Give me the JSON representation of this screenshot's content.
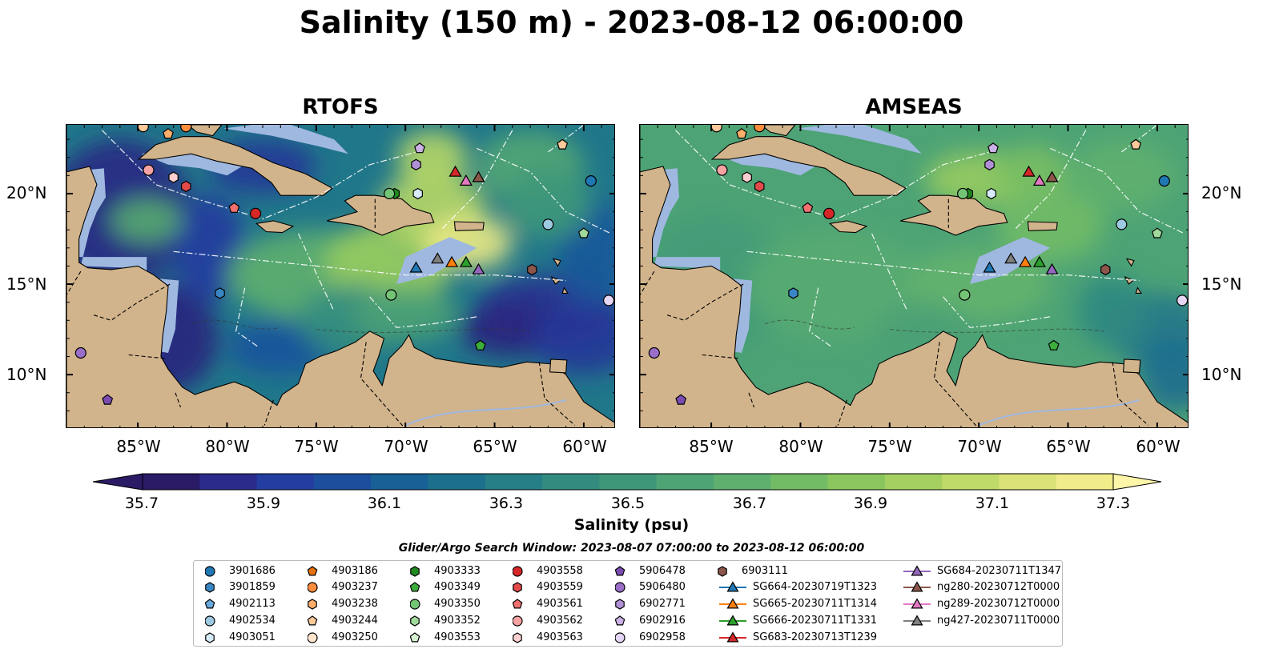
{
  "title": "Salinity (150 m) - 2023-08-12 06:00:00",
  "panels": [
    {
      "title": "RTOFS",
      "scheme": "rtofs"
    },
    {
      "title": "AMSEAS",
      "scheme": "amseas"
    }
  ],
  "x_ticks": [
    "85°W",
    "80°W",
    "75°W",
    "70°W",
    "65°W",
    "60°W"
  ],
  "y_ticks": [
    "20°N",
    "15°N",
    "10°N"
  ],
  "colorbar": {
    "label": "Salinity (psu)",
    "ticks": [
      "35.7",
      "35.9",
      "36.1",
      "36.3",
      "36.5",
      "36.7",
      "36.9",
      "37.1",
      "37.3"
    ],
    "colors": [
      "#2b1a66",
      "#2a2b8a",
      "#233ea0",
      "#1b4f9e",
      "#186196",
      "#1d708d",
      "#267f86",
      "#338b7f",
      "#3f977a",
      "#4ea475",
      "#5fb06f",
      "#73bc66",
      "#8ac65d",
      "#a4d061",
      "#c0da6a",
      "#dae377",
      "#f1ec8a"
    ]
  },
  "search_window": "Glider/Argo Search Window: 2023-08-07 07:00:00 to 2023-08-12 06:00:00",
  "legend": [
    [
      "3901686",
      "circle",
      "#1f77b4"
    ],
    [
      "3901859",
      "hexagon",
      "#3a86c4"
    ],
    [
      "4902113",
      "pentagon",
      "#6aa9db"
    ],
    [
      "4902534",
      "circle",
      "#9ecae1"
    ],
    [
      "4903051",
      "hexagon",
      "#d6ebf7"
    ],
    [
      "4903186",
      "pentagon",
      "#e6700b"
    ],
    [
      "4903237",
      "circle",
      "#fd8d3c"
    ],
    [
      "4903238",
      "hexagon",
      "#fdae6b"
    ],
    [
      "4903244",
      "pentagon",
      "#fdc99a"
    ],
    [
      "4903250",
      "circle",
      "#ffe6cc"
    ],
    [
      "4903333",
      "hexagon",
      "#1f8a1f"
    ],
    [
      "4903349",
      "pentagon",
      "#3cae3c"
    ],
    [
      "4903350",
      "circle",
      "#74c476"
    ],
    [
      "4903352",
      "hexagon",
      "#a1d99b"
    ],
    [
      "4903553",
      "pentagon",
      "#d7f2cf"
    ],
    [
      "4903558",
      "circle",
      "#d62728"
    ],
    [
      "4903559",
      "hexagon",
      "#e34a4a"
    ],
    [
      "4903561",
      "pentagon",
      "#f07070"
    ],
    [
      "4903562",
      "circle",
      "#f7a3a3"
    ],
    [
      "4903563",
      "hexagon",
      "#fcd0d0"
    ],
    [
      "5906478",
      "pentagon",
      "#7b4bb0"
    ],
    [
      "5906480",
      "circle",
      "#9a6ec8"
    ],
    [
      "6902771",
      "hexagon",
      "#b091d6"
    ],
    [
      "6902916",
      "pentagon",
      "#cbb2e6"
    ],
    [
      "6902958",
      "circle",
      "#e6d6f5"
    ],
    [
      "6903111",
      "hexagon",
      "#8c564b"
    ],
    [
      "SG664-20230719T1323",
      "triangle",
      "#1f77b4"
    ],
    [
      "SG665-20230711T1314",
      "triangle",
      "#ff7f0e"
    ],
    [
      "SG666-20230711T1331",
      "triangle",
      "#2ca02c"
    ],
    [
      "SG683-20230713T1239",
      "triangle",
      "#d62728"
    ],
    [
      "SG684-20230711T1347",
      "triangle",
      "#9467bd"
    ],
    [
      "ng280-20230712T0000",
      "triangle",
      "#8c564b"
    ],
    [
      "ng289-20230712T0000",
      "triangle",
      "#e377c2"
    ],
    [
      "ng427-20230711T0000",
      "triangle",
      "#7f7f7f"
    ]
  ],
  "map_markers": [
    {
      "lon": -84.4,
      "lat": 21.3,
      "shape": "circle",
      "color": "#f7a3a3"
    },
    {
      "lon": -83.0,
      "lat": 20.9,
      "shape": "hexagon",
      "color": "#fcd0d0"
    },
    {
      "lon": -82.3,
      "lat": 20.4,
      "shape": "hexagon",
      "color": "#e34a4a"
    },
    {
      "lon": -79.6,
      "lat": 19.2,
      "shape": "pentagon",
      "color": "#f07070"
    },
    {
      "lon": -78.4,
      "lat": 18.9,
      "shape": "circle",
      "color": "#d62728"
    },
    {
      "lon": -84.7,
      "lat": 23.7,
      "shape": "circle",
      "color": "#fdc99a"
    },
    {
      "lon": -83.3,
      "lat": 23.3,
      "shape": "pentagon",
      "color": "#fdae6b"
    },
    {
      "lon": -82.3,
      "lat": 23.7,
      "shape": "circle",
      "color": "#fd8d3c"
    },
    {
      "lon": -69.2,
      "lat": 22.5,
      "shape": "pentagon",
      "color": "#cbb2e6"
    },
    {
      "lon": -69.4,
      "lat": 21.6,
      "shape": "hexagon",
      "color": "#b091d6"
    },
    {
      "lon": -70.6,
      "lat": 20.0,
      "shape": "hexagon",
      "color": "#1f8a1f"
    },
    {
      "lon": -70.9,
      "lat": 20.0,
      "shape": "circle",
      "color": "#74c476"
    },
    {
      "lon": -69.3,
      "lat": 20.0,
      "shape": "hexagon",
      "color": "#d6ebf7"
    },
    {
      "lon": -67.2,
      "lat": 21.2,
      "shape": "triangle",
      "color": "#d62728"
    },
    {
      "lon": -66.6,
      "lat": 20.7,
      "shape": "triangle",
      "color": "#e377c2"
    },
    {
      "lon": -65.9,
      "lat": 20.9,
      "shape": "triangle",
      "color": "#8c564b"
    },
    {
      "lon": -61.2,
      "lat": 22.7,
      "shape": "pentagon",
      "color": "#fdc99a"
    },
    {
      "lon": -59.6,
      "lat": 20.7,
      "shape": "circle",
      "color": "#1f77b4"
    },
    {
      "lon": -62.0,
      "lat": 18.3,
      "shape": "circle",
      "color": "#9ecae1"
    },
    {
      "lon": -60.0,
      "lat": 17.8,
      "shape": "pentagon",
      "color": "#a1d99b"
    },
    {
      "lon": -62.9,
      "lat": 15.8,
      "shape": "hexagon",
      "color": "#8c564b"
    },
    {
      "lon": -58.6,
      "lat": 14.1,
      "shape": "circle",
      "color": "#e6d6f5"
    },
    {
      "lon": -69.4,
      "lat": 15.9,
      "shape": "triangle",
      "color": "#1f77b4"
    },
    {
      "lon": -68.2,
      "lat": 16.4,
      "shape": "triangle",
      "color": "#7f7f7f"
    },
    {
      "lon": -67.4,
      "lat": 16.2,
      "shape": "triangle",
      "color": "#ff7f0e"
    },
    {
      "lon": -66.6,
      "lat": 16.2,
      "shape": "triangle",
      "color": "#2ca02c"
    },
    {
      "lon": -65.9,
      "lat": 15.8,
      "shape": "triangle",
      "color": "#9467bd"
    },
    {
      "lon": -70.8,
      "lat": 14.4,
      "shape": "circle",
      "color": "#74c476"
    },
    {
      "lon": -65.8,
      "lat": 11.6,
      "shape": "pentagon",
      "color": "#3cae3c"
    },
    {
      "lon": -80.4,
      "lat": 14.5,
      "shape": "hexagon",
      "color": "#3a86c4"
    },
    {
      "lon": -88.2,
      "lat": 11.2,
      "shape": "circle",
      "color": "#9a6ec8"
    },
    {
      "lon": -86.7,
      "lat": 8.6,
      "shape": "pentagon",
      "color": "#7b4bb0"
    }
  ]
}
